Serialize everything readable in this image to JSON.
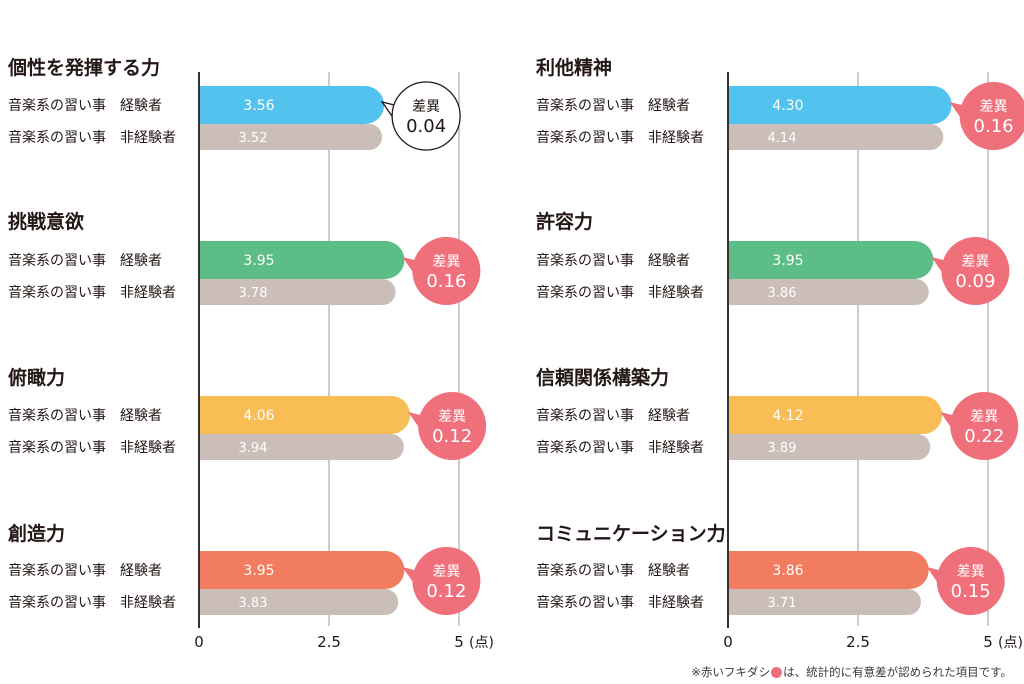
{
  "chart_data": {
    "type": "bar",
    "orientation": "horizontal",
    "xlim": [
      0,
      5
    ],
    "ticks": [
      "0",
      "2.5",
      "5"
    ],
    "unit_label": "(点)",
    "grid": true,
    "colors": {
      "non_experienced": "#cbbdb8",
      "significant_bubble": "#ef6f7b",
      "axis": "#333333",
      "grid": "#9a9a9a"
    },
    "panels": [
      {
        "charts": [
          {
            "title": "個性を発揮する力",
            "color": "#52c3ee",
            "series": [
              {
                "name": "音楽系の習い事　経験者",
                "value": 3.56
              },
              {
                "name": "音楽系の習い事　非経験者",
                "value": 3.52
              }
            ],
            "difference": {
              "label": "差異",
              "value": "0.04",
              "significant": false
            }
          },
          {
            "title": "挑戦意欲",
            "color": "#5dbd86",
            "series": [
              {
                "name": "音楽系の習い事　経験者",
                "value": 3.95
              },
              {
                "name": "音楽系の習い事　非経験者",
                "value": 3.78
              }
            ],
            "difference": {
              "label": "差異",
              "value": "0.16",
              "significant": true
            }
          },
          {
            "title": "俯瞰力",
            "color": "#f9bd55",
            "series": [
              {
                "name": "音楽系の習い事　経験者",
                "value": 4.06
              },
              {
                "name": "音楽系の習い事　非経験者",
                "value": 3.94
              }
            ],
            "difference": {
              "label": "差異",
              "value": "0.12",
              "significant": true
            }
          },
          {
            "title": "創造力",
            "color": "#f27c60",
            "series": [
              {
                "name": "音楽系の習い事　経験者",
                "value": 3.95
              },
              {
                "name": "音楽系の習い事　非経験者",
                "value": 3.83
              }
            ],
            "difference": {
              "label": "差異",
              "value": "0.12",
              "significant": true
            }
          }
        ]
      },
      {
        "charts": [
          {
            "title": "利他精神",
            "color": "#52c3ee",
            "series": [
              {
                "name": "音楽系の習い事　経験者",
                "value": 4.3
              },
              {
                "name": "音楽系の習い事　非経験者",
                "value": 4.14
              }
            ],
            "difference": {
              "label": "差異",
              "value": "0.16",
              "significant": true
            }
          },
          {
            "title": "許容力",
            "color": "#5dbd86",
            "series": [
              {
                "name": "音楽系の習い事　経験者",
                "value": 3.95
              },
              {
                "name": "音楽系の習い事　非経験者",
                "value": 3.86
              }
            ],
            "difference": {
              "label": "差異",
              "value": "0.09",
              "significant": true
            }
          },
          {
            "title": "信頼関係構築力",
            "color": "#f9bd55",
            "series": [
              {
                "name": "音楽系の習い事　経験者",
                "value": 4.12
              },
              {
                "name": "音楽系の習い事　非経験者",
                "value": 3.89
              }
            ],
            "difference": {
              "label": "差異",
              "value": "0.22",
              "significant": true
            }
          },
          {
            "title": "コミュニケーション力",
            "color": "#f27c60",
            "series": [
              {
                "name": "音楽系の習い事　経験者",
                "value": 3.86
              },
              {
                "name": "音楽系の習い事　非経験者",
                "value": 3.71
              }
            ],
            "difference": {
              "label": "差異",
              "value": "0.15",
              "significant": true
            }
          }
        ]
      }
    ]
  },
  "footnote": {
    "prefix": "※赤いフキダシ",
    "suffix": "は、統計的に有意差が認められた項目です。"
  }
}
